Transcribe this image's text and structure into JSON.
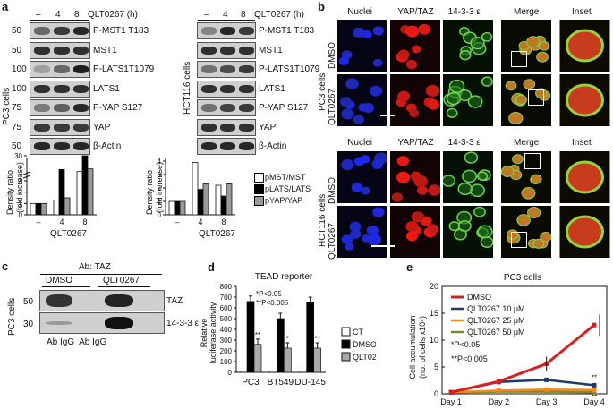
{
  "panels": {
    "a": "a",
    "b": "b",
    "c": "c",
    "d": "d",
    "e": "e"
  },
  "a": {
    "treatment_header": "QLT0267 (h)",
    "timepoints": [
      "–",
      "4",
      "8"
    ],
    "pc3": {
      "cell_label": "PC3 cells",
      "blots": [
        "P-MST1 T183",
        "MST1",
        "P-LATS1T1079",
        "LATS1",
        "P-YAP S127",
        "YAP",
        "β-Actin"
      ],
      "mw": [
        "50",
        "50",
        "100",
        "100",
        "75",
        "75",
        "50"
      ]
    },
    "hct": {
      "cell_label": "HCT116 cells",
      "blots": [
        "P-MST1 T183",
        "MST1",
        "P-LATS1T1079",
        "LATS1",
        "P-YAP S127",
        "YAP",
        "β-Actin"
      ]
    },
    "density_ylabel_1": "Density ratio",
    "density_ylabel_2": "(fold increase)",
    "density_xlabel": "QLT0267",
    "legend": [
      "pMST/MST",
      "pLATS/LATS",
      "pYAP/YAP"
    ]
  },
  "b": {
    "col_headers": [
      "Nuclei",
      "YAP/TAZ",
      "14-3-3 ε",
      "Merge",
      "Inset"
    ],
    "pc3_label": "PC3 cells",
    "hct_label": "HCT116 cells",
    "rows": [
      "DMSO",
      "QLT0267",
      "DMSO",
      "QLT0267"
    ]
  },
  "c": {
    "ab_label": "Ab: TAZ",
    "groups": [
      "DMSO",
      "QLT0267"
    ],
    "mw": [
      "50",
      "30"
    ],
    "bands": [
      "TAZ",
      "14-3-3 ε"
    ],
    "lanes": "Ab IgG  Ab IgG",
    "cell_label": "PC3 cells"
  },
  "chart_data": [
    {
      "type": "bar",
      "title": "",
      "xlabel": "QLT0267",
      "ylabel": "Density ratio (fold increase)",
      "categories": [
        "–",
        "4",
        "8"
      ],
      "yticks": [
        "0",
        "1",
        "2",
        "3",
        "30"
      ],
      "series": [
        {
          "name": "pMST/MST",
          "values": [
            1,
            1.3,
            3.5
          ]
        },
        {
          "name": "pLATS/LATS",
          "values": [
            1,
            7,
            30
          ]
        },
        {
          "name": "pYAP/YAP",
          "values": [
            1,
            1.5,
            8
          ]
        }
      ]
    },
    {
      "type": "bar",
      "title": "",
      "xlabel": "QLT0267",
      "ylabel": "Density ratio (fold increase)",
      "categories": [
        "–",
        "4",
        "8"
      ],
      "ylim": [
        0,
        4
      ],
      "yticks": [
        "0",
        "1",
        "2",
        "3",
        "4"
      ],
      "series": [
        {
          "name": "pMST/MST",
          "values": [
            1,
            3.9,
            2.2
          ]
        },
        {
          "name": "pLATS/LATS",
          "values": [
            1,
            1.9,
            1.4
          ]
        },
        {
          "name": "pYAP/YAP",
          "values": [
            1,
            2.3,
            2.3
          ]
        }
      ]
    },
    {
      "type": "bar",
      "title": "TEAD reporter",
      "xlabel": "",
      "ylabel": "Relative luciferase activity",
      "categories": [
        "PC3",
        "BT549",
        "DU-145"
      ],
      "ylim": [
        0,
        800
      ],
      "yticks": [
        "0",
        "100",
        "200",
        "300",
        "400",
        "500",
        "600",
        "700",
        "800"
      ],
      "series": [
        {
          "name": "CT",
          "values": [
            10,
            10,
            10
          ]
        },
        {
          "name": "DMSO",
          "values": [
            660,
            500,
            650
          ]
        },
        {
          "name": "QLT0267",
          "values": [
            260,
            225,
            225
          ]
        }
      ],
      "annotations": [
        "*P<0.05",
        "**P<0.005",
        "**",
        "*",
        "**"
      ]
    },
    {
      "type": "line",
      "title": "PC3 cells",
      "xlabel": "",
      "ylabel": "Cell accumulation (no. of cells x10⁴)",
      "categories": [
        "Day 1",
        "Day 2",
        "Day 3",
        "Day 4"
      ],
      "ylim": [
        0,
        20
      ],
      "yticks": [
        "0",
        "5",
        "10",
        "15",
        "20"
      ],
      "series": [
        {
          "name": "DMSO",
          "values": [
            0.3,
            2.3,
            5.6,
            12.8
          ],
          "color": "#d32020"
        },
        {
          "name": "QLT0267 10 μM",
          "values": [
            0.3,
            2.2,
            2.6,
            1.6
          ],
          "color": "#1f3a6b"
        },
        {
          "name": "QLT0267 25 μM",
          "values": [
            0.3,
            0.6,
            0.8,
            0.7
          ],
          "color": "#f08a18"
        },
        {
          "name": "QLT0267 50 μM",
          "values": [
            0.3,
            0.4,
            0.4,
            0.3
          ],
          "color": "#7a8a3a"
        }
      ],
      "annotations": [
        "*P<0.05",
        "**P<0.005",
        "**",
        "**"
      ]
    }
  ]
}
